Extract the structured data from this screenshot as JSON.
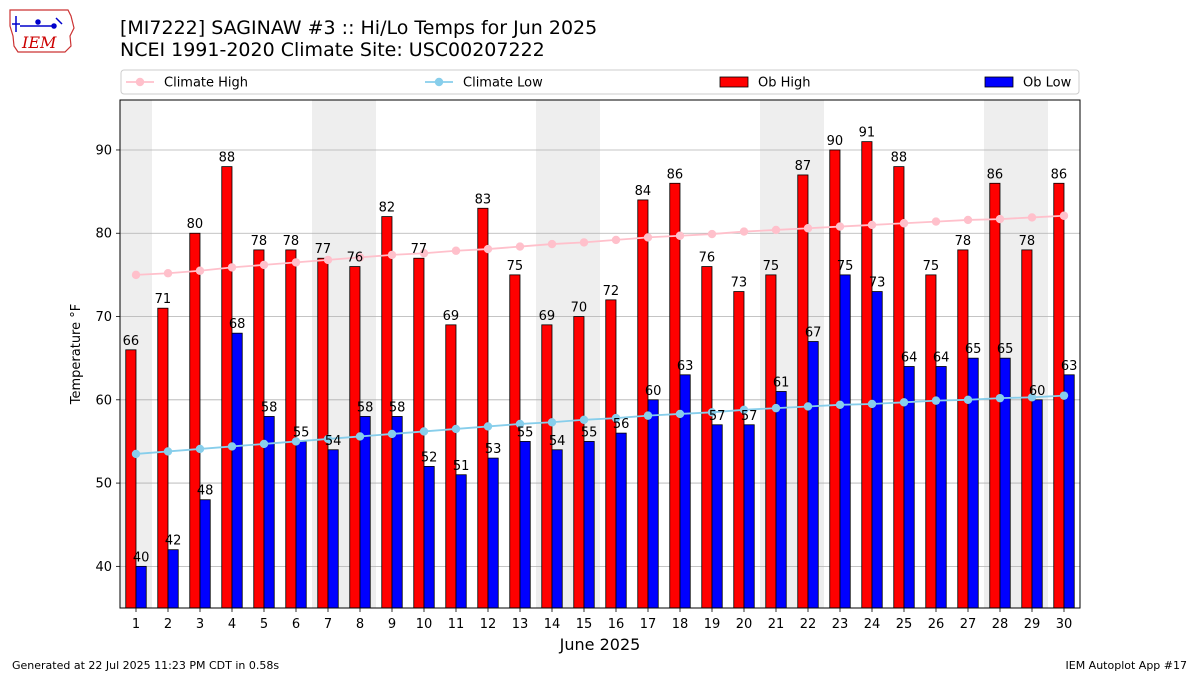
{
  "logo": {
    "text": "IEM",
    "colors": {
      "state": "#cc3333",
      "text": "#cc0000",
      "instrument": "#0000cc"
    }
  },
  "title": {
    "line1": "[MI7222] SAGINAW #3 :: Hi/Lo Temps for Jun 2025",
    "line2": "NCEI 1991-2020 Climate Site: USC00207222"
  },
  "footer": {
    "left": "Generated at 22 Jul 2025 11:23 PM CDT in 0.58s",
    "right": "IEM Autoplot App #17"
  },
  "chart_data": {
    "type": "bar",
    "xlabel": "June 2025",
    "ylabel": "Temperature °F",
    "ylim": [
      35,
      96
    ],
    "yticks": [
      40,
      50,
      60,
      70,
      80,
      90
    ],
    "grid": "y",
    "legend_position": "top",
    "categories": [
      1,
      2,
      3,
      4,
      5,
      6,
      7,
      8,
      9,
      10,
      11,
      12,
      13,
      14,
      15,
      16,
      17,
      18,
      19,
      20,
      21,
      22,
      23,
      24,
      25,
      26,
      27,
      28,
      29,
      30
    ],
    "shaded_days": [
      1,
      7,
      8,
      14,
      15,
      21,
      22,
      28,
      29
    ],
    "series": [
      {
        "name": "Climate High",
        "type": "line",
        "color": "#ffc0cb",
        "values": [
          75.0,
          75.2,
          75.5,
          75.9,
          76.2,
          76.5,
          76.8,
          77.1,
          77.4,
          77.6,
          77.9,
          78.1,
          78.4,
          78.7,
          78.9,
          79.2,
          79.5,
          79.7,
          79.9,
          80.2,
          80.4,
          80.6,
          80.8,
          81.0,
          81.2,
          81.4,
          81.6,
          81.7,
          81.9,
          82.1
        ]
      },
      {
        "name": "Climate Low",
        "type": "line",
        "color": "#87ceeb",
        "values": [
          53.5,
          53.8,
          54.1,
          54.4,
          54.7,
          55.0,
          55.3,
          55.6,
          55.9,
          56.2,
          56.5,
          56.8,
          57.1,
          57.3,
          57.6,
          57.8,
          58.1,
          58.3,
          58.5,
          58.8,
          59.0,
          59.2,
          59.4,
          59.5,
          59.7,
          59.9,
          60.0,
          60.2,
          60.3,
          60.5
        ]
      },
      {
        "name": "Ob High",
        "type": "bar",
        "color": "#ff0000",
        "values": [
          66,
          71,
          80,
          88,
          78,
          78,
          77,
          76,
          82,
          77,
          69,
          83,
          75,
          69,
          70,
          72,
          84,
          86,
          76,
          73,
          75,
          87,
          90,
          91,
          88,
          75,
          78,
          86,
          78,
          86
        ]
      },
      {
        "name": "Ob Low",
        "type": "bar",
        "color": "#0000ff",
        "values": [
          40,
          42,
          48,
          68,
          58,
          55,
          54,
          58,
          58,
          52,
          51,
          53,
          55,
          54,
          55,
          56,
          60,
          63,
          57,
          57,
          61,
          67,
          75,
          73,
          64,
          64,
          65,
          65,
          60,
          63
        ]
      }
    ]
  }
}
